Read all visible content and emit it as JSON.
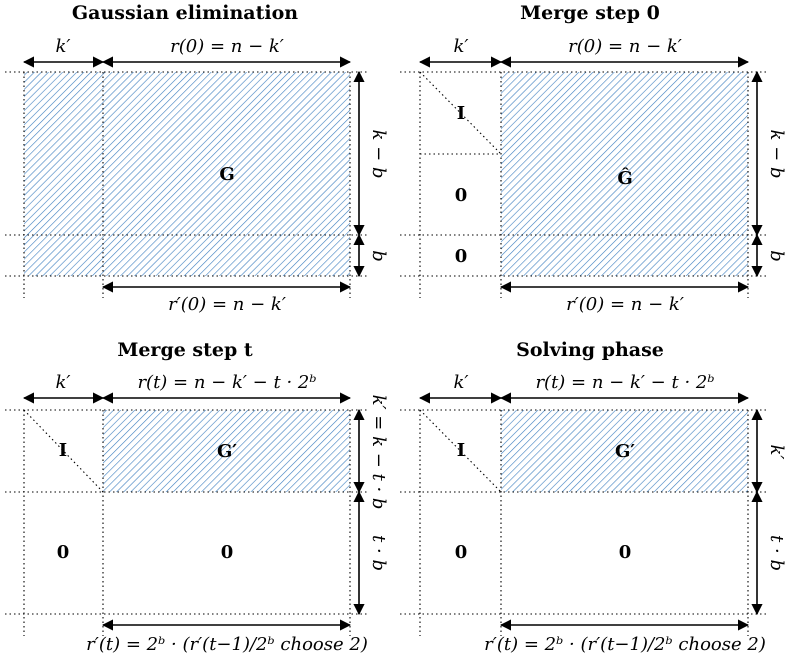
{
  "panels": [
    {
      "title": "Gaussian elimination",
      "kprime": "k′",
      "top_width": "r(0) = n − k′",
      "bottom_width": "r′(0) = n − k′",
      "matrix": "G",
      "right_upper": "k − b",
      "right_lower": "b"
    },
    {
      "title": "Merge step 0",
      "kprime": "k′",
      "top_width": "r(0) = n − k′",
      "bottom_width": "r′(0) = n − k′",
      "identity": "I",
      "zero_upper": "0",
      "zero_lower": "0",
      "matrix": "Ĝ",
      "right_upper": "k − b",
      "right_lower": "b"
    },
    {
      "title": "Merge step t",
      "kprime": "k′",
      "top_width": "r(t) = n − k′ − t · 2ᵇ",
      "bottom_width": "r′(t) = 2ᵇ · (r′(t−1)/2ᵇ choose 2)",
      "identity": "I",
      "zero_left": "0",
      "zero_right": "0",
      "matrix": "G′",
      "right_upper": "k′ = k − t · b",
      "right_lower": "t · b"
    },
    {
      "title": "Solving phase",
      "kprime": "k′",
      "top_width": "r(t) = n − k′ − t · 2ᵇ",
      "bottom_width": "r′(t) = 2ᵇ · (r′(t−1)/2ᵇ choose 2)",
      "identity": "I",
      "zero_left": "0",
      "zero_right": "0",
      "matrix": "G′",
      "right_upper": "k′",
      "right_lower": "t · b"
    }
  ],
  "colors": {
    "hatch": "#3d7fc0"
  }
}
